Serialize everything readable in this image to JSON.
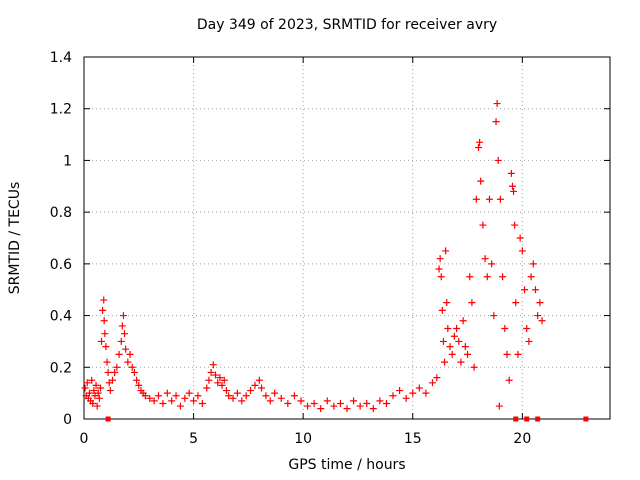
{
  "chart_data": {
    "type": "scatter",
    "title": "Day 349 of 2023, SRMTID for receiver avry",
    "xlabel": "GPS time / hours",
    "ylabel": "SRMTID / TECUs",
    "xlim": [
      0,
      24
    ],
    "ylim": [
      0,
      1.4
    ],
    "xticks": [
      0,
      5,
      10,
      15,
      20
    ],
    "yticks": [
      0,
      0.2,
      0.4,
      0.6,
      0.8,
      1,
      1.2,
      1.4
    ],
    "ytick_labels": [
      "0",
      "0.2",
      "0.4",
      "0.6",
      "0.8",
      "1",
      "1.2",
      "1.4"
    ],
    "grid": true,
    "marker": "plus",
    "color": "#ff0000",
    "series": [
      {
        "name": "SRMTID",
        "points": [
          [
            0.05,
            0.12
          ],
          [
            0.1,
            0.09
          ],
          [
            0.15,
            0.14
          ],
          [
            0.2,
            0.08
          ],
          [
            0.25,
            0.1
          ],
          [
            0.3,
            0.07
          ],
          [
            0.35,
            0.15
          ],
          [
            0.4,
            0.06
          ],
          [
            0.45,
            0.11
          ],
          [
            0.5,
            0.09
          ],
          [
            0.55,
            0.13
          ],
          [
            0.6,
            0.05
          ],
          [
            0.65,
            0.1
          ],
          [
            0.7,
            0.08
          ],
          [
            0.75,
            0.12
          ],
          [
            0.8,
            0.3
          ],
          [
            0.85,
            0.42
          ],
          [
            0.9,
            0.46
          ],
          [
            0.92,
            0.38
          ],
          [
            0.95,
            0.33
          ],
          [
            1.0,
            0.28
          ],
          [
            1.05,
            0.22
          ],
          [
            1.1,
            0.18
          ],
          [
            1.15,
            0.14
          ],
          [
            1.2,
            0.11
          ],
          [
            1.3,
            0.15
          ],
          [
            1.4,
            0.18
          ],
          [
            1.5,
            0.2
          ],
          [
            1.6,
            0.25
          ],
          [
            1.7,
            0.3
          ],
          [
            1.75,
            0.36
          ],
          [
            1.8,
            0.4
          ],
          [
            1.85,
            0.33
          ],
          [
            1.9,
            0.27
          ],
          [
            2.0,
            0.22
          ],
          [
            2.1,
            0.25
          ],
          [
            2.2,
            0.2
          ],
          [
            2.3,
            0.18
          ],
          [
            2.4,
            0.15
          ],
          [
            2.5,
            0.13
          ],
          [
            2.6,
            0.11
          ],
          [
            2.7,
            0.1
          ],
          [
            2.8,
            0.09
          ],
          [
            3.0,
            0.08
          ],
          [
            3.2,
            0.07
          ],
          [
            3.4,
            0.09
          ],
          [
            3.6,
            0.06
          ],
          [
            3.8,
            0.1
          ],
          [
            4.0,
            0.07
          ],
          [
            4.2,
            0.09
          ],
          [
            4.4,
            0.05
          ],
          [
            4.6,
            0.08
          ],
          [
            4.8,
            0.1
          ],
          [
            5.0,
            0.07
          ],
          [
            5.2,
            0.09
          ],
          [
            5.4,
            0.06
          ],
          [
            5.6,
            0.12
          ],
          [
            5.7,
            0.15
          ],
          [
            5.8,
            0.18
          ],
          [
            5.9,
            0.21
          ],
          [
            6.0,
            0.17
          ],
          [
            6.1,
            0.14
          ],
          [
            6.2,
            0.16
          ],
          [
            6.3,
            0.13
          ],
          [
            6.4,
            0.15
          ],
          [
            6.5,
            0.11
          ],
          [
            6.6,
            0.09
          ],
          [
            6.8,
            0.08
          ],
          [
            7.0,
            0.1
          ],
          [
            7.2,
            0.07
          ],
          [
            7.4,
            0.09
          ],
          [
            7.6,
            0.11
          ],
          [
            7.8,
            0.13
          ],
          [
            8.0,
            0.15
          ],
          [
            8.1,
            0.12
          ],
          [
            8.3,
            0.09
          ],
          [
            8.5,
            0.07
          ],
          [
            8.7,
            0.1
          ],
          [
            9.0,
            0.08
          ],
          [
            9.3,
            0.06
          ],
          [
            9.6,
            0.09
          ],
          [
            9.9,
            0.07
          ],
          [
            10.2,
            0.05
          ],
          [
            10.5,
            0.06
          ],
          [
            10.8,
            0.04
          ],
          [
            11.1,
            0.07
          ],
          [
            11.4,
            0.05
          ],
          [
            11.7,
            0.06
          ],
          [
            12.0,
            0.04
          ],
          [
            12.3,
            0.07
          ],
          [
            12.6,
            0.05
          ],
          [
            12.9,
            0.06
          ],
          [
            13.2,
            0.04
          ],
          [
            13.5,
            0.07
          ],
          [
            13.8,
            0.06
          ],
          [
            14.1,
            0.09
          ],
          [
            14.4,
            0.11
          ],
          [
            14.7,
            0.08
          ],
          [
            15.0,
            0.1
          ],
          [
            15.3,
            0.12
          ],
          [
            15.6,
            0.1
          ],
          [
            15.9,
            0.14
          ],
          [
            16.1,
            0.16
          ],
          [
            16.2,
            0.58
          ],
          [
            16.25,
            0.62
          ],
          [
            16.3,
            0.55
          ],
          [
            16.35,
            0.42
          ],
          [
            16.4,
            0.3
          ],
          [
            16.45,
            0.22
          ],
          [
            16.5,
            0.65
          ],
          [
            16.55,
            0.45
          ],
          [
            16.6,
            0.35
          ],
          [
            16.7,
            0.28
          ],
          [
            16.8,
            0.25
          ],
          [
            16.9,
            0.32
          ],
          [
            17.0,
            0.35
          ],
          [
            17.1,
            0.3
          ],
          [
            17.2,
            0.22
          ],
          [
            17.3,
            0.38
          ],
          [
            17.4,
            0.28
          ],
          [
            17.5,
            0.25
          ],
          [
            17.6,
            0.55
          ],
          [
            17.7,
            0.45
          ],
          [
            17.8,
            0.2
          ],
          [
            17.9,
            0.85
          ],
          [
            18.0,
            1.05
          ],
          [
            18.05,
            1.07
          ],
          [
            18.1,
            0.92
          ],
          [
            18.2,
            0.75
          ],
          [
            18.3,
            0.62
          ],
          [
            18.4,
            0.55
          ],
          [
            18.5,
            0.85
          ],
          [
            18.6,
            0.6
          ],
          [
            18.7,
            0.4
          ],
          [
            18.8,
            1.15
          ],
          [
            18.85,
            1.22
          ],
          [
            18.9,
            1.0
          ],
          [
            18.95,
            0.05
          ],
          [
            19.0,
            0.85
          ],
          [
            19.1,
            0.55
          ],
          [
            19.2,
            0.35
          ],
          [
            19.3,
            0.25
          ],
          [
            19.4,
            0.15
          ],
          [
            19.5,
            0.95
          ],
          [
            19.55,
            0.9
          ],
          [
            19.6,
            0.88
          ],
          [
            19.65,
            0.75
          ],
          [
            19.7,
            0.45
          ],
          [
            19.8,
            0.25
          ],
          [
            19.9,
            0.7
          ],
          [
            20.0,
            0.65
          ],
          [
            20.1,
            0.5
          ],
          [
            20.2,
            0.35
          ],
          [
            20.3,
            0.3
          ],
          [
            20.4,
            0.55
          ],
          [
            20.5,
            0.6
          ],
          [
            20.6,
            0.5
          ],
          [
            20.7,
            0.4
          ],
          [
            20.8,
            0.45
          ],
          [
            20.9,
            0.38
          ]
        ]
      }
    ],
    "zero_markers": [
      1.1,
      19.7,
      20.2,
      20.7,
      22.9
    ]
  }
}
